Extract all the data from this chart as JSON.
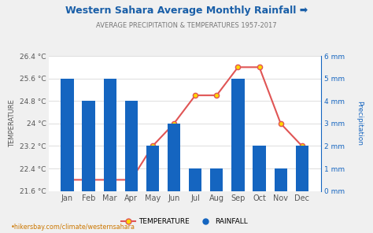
{
  "title": "Western Sahara Average Monthly Rainfall ➡",
  "subtitle": "AVERAGE PRECIPITATION & TEMPERATURES 1957-2017",
  "months": [
    "Jan",
    "Feb",
    "Mar",
    "Apr",
    "May",
    "Jun",
    "Jul",
    "Aug",
    "Sep",
    "Oct",
    "Nov",
    "Dec"
  ],
  "temperature": [
    22.0,
    22.0,
    22.0,
    22.0,
    23.2,
    24.0,
    25.0,
    25.0,
    26.0,
    26.0,
    24.0,
    23.2
  ],
  "rainfall": [
    5.0,
    4.0,
    5.0,
    4.0,
    2.0,
    3.0,
    1.0,
    1.0,
    5.0,
    2.0,
    1.0,
    2.0
  ],
  "temp_ylim": [
    21.6,
    26.4
  ],
  "rain_ylim": [
    0,
    6
  ],
  "temp_yticks": [
    21.6,
    22.4,
    23.2,
    24.0,
    24.8,
    25.6,
    26.4
  ],
  "temp_ytick_labels": [
    "21.6 °C",
    "22.4 °C",
    "23.2 °C",
    "24 °C",
    "24.8 °C",
    "25.6 °C",
    "26.4 °C"
  ],
  "rain_yticks": [
    0,
    1,
    2,
    3,
    4,
    5,
    6
  ],
  "rain_ytick_labels": [
    "0 mm",
    "1 mm",
    "2 mm",
    "3 mm",
    "4 mm",
    "5 mm",
    "6 mm"
  ],
  "bar_color": "#1565C0",
  "line_color": "#e05555",
  "marker_facecolor": "#FFD700",
  "marker_edgecolor": "#e05555",
  "bg_color": "#f0f0f0",
  "plot_bg_color": "#ffffff",
  "grid_color": "#dddddd",
  "title_color": "#1a5fa8",
  "subtitle_color": "#777777",
  "left_tick_color": "#555555",
  "right_tick_color": "#1565C0",
  "ylabel_left": "TEMPERATURE",
  "ylabel_right": "Precipitation",
  "footer": "•hikersbay.com/climate/westernsahara",
  "legend_temp_label": "TEMPERATURE",
  "legend_rain_label": "RAINFALL",
  "figsize": [
    4.74,
    2.96
  ],
  "dpi": 100
}
